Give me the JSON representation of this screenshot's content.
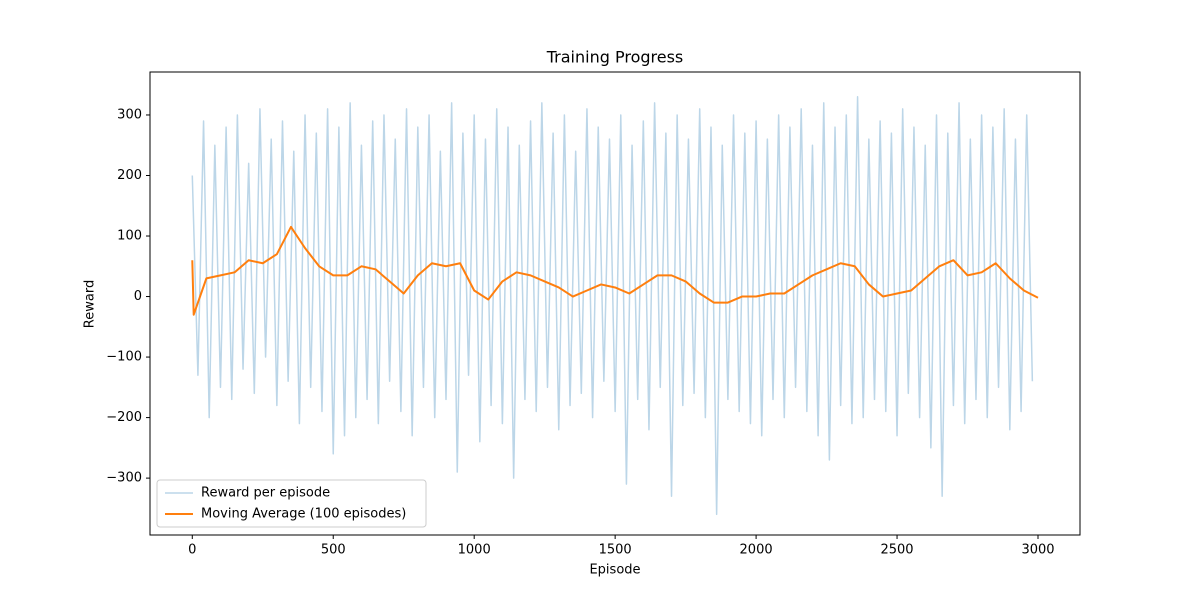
{
  "chart_data": {
    "type": "line",
    "title": "Training Progress",
    "x_label": "Episode",
    "y_label": "Reward",
    "xlim": [
      -150,
      3149
    ],
    "ylim": [
      -394,
      371
    ],
    "xticks": [
      0,
      500,
      1000,
      1500,
      2000,
      2500,
      3000
    ],
    "yticks": [
      {
        "value": -300,
        "label": "−300"
      },
      {
        "value": -200,
        "label": "−200"
      },
      {
        "value": -100,
        "label": "−100"
      },
      0,
      100,
      200,
      300
    ],
    "legend": "lower left",
    "series": [
      {
        "name": "Reward per episode",
        "color": "#bcd6e8",
        "width": 1.5,
        "x": [
          0,
          20,
          40,
          60,
          80,
          100,
          120,
          140,
          160,
          180,
          200,
          220,
          240,
          260,
          280,
          300,
          320,
          340,
          360,
          380,
          400,
          420,
          440,
          460,
          480,
          500,
          520,
          540,
          560,
          580,
          600,
          620,
          640,
          660,
          680,
          700,
          720,
          740,
          760,
          780,
          800,
          820,
          840,
          860,
          880,
          900,
          920,
          940,
          960,
          980,
          1000,
          1020,
          1040,
          1060,
          1080,
          1100,
          1120,
          1140,
          1160,
          1180,
          1200,
          1220,
          1240,
          1260,
          1280,
          1300,
          1320,
          1340,
          1360,
          1380,
          1400,
          1420,
          1440,
          1460,
          1480,
          1500,
          1520,
          1540,
          1560,
          1580,
          1600,
          1620,
          1640,
          1660,
          1680,
          1700,
          1720,
          1740,
          1760,
          1780,
          1800,
          1820,
          1840,
          1860,
          1880,
          1900,
          1920,
          1940,
          1960,
          1980,
          2000,
          2020,
          2040,
          2060,
          2080,
          2100,
          2120,
          2140,
          2160,
          2180,
          2200,
          2220,
          2240,
          2260,
          2280,
          2300,
          2320,
          2340,
          2360,
          2380,
          2400,
          2420,
          2440,
          2460,
          2480,
          2500,
          2520,
          2540,
          2560,
          2580,
          2600,
          2620,
          2640,
          2660,
          2680,
          2700,
          2720,
          2740,
          2760,
          2780,
          2800,
          2820,
          2840,
          2860,
          2880,
          2900,
          2920,
          2940,
          2960,
          2980
        ],
        "values": [
          200,
          -130,
          290,
          -200,
          250,
          -150,
          280,
          -170,
          300,
          -120,
          220,
          -160,
          310,
          -100,
          260,
          -180,
          290,
          -140,
          240,
          -210,
          300,
          -150,
          270,
          -190,
          310,
          -260,
          280,
          -230,
          320,
          -200,
          250,
          -170,
          290,
          -210,
          300,
          -140,
          260,
          -190,
          310,
          -230,
          280,
          -150,
          300,
          -200,
          240,
          -170,
          320,
          -290,
          270,
          -130,
          300,
          -240,
          260,
          -180,
          310,
          -210,
          280,
          -300,
          250,
          -170,
          290,
          -190,
          320,
          -150,
          270,
          -220,
          300,
          -180,
          240,
          -160,
          310,
          -200,
          280,
          -140,
          260,
          -190,
          300,
          -310,
          250,
          -170,
          290,
          -220,
          320,
          -150,
          270,
          -330,
          300,
          -180,
          260,
          -160,
          310,
          -200,
          280,
          -360,
          250,
          -170,
          300,
          -190,
          270,
          -210,
          290,
          -230,
          260,
          -170,
          300,
          -200,
          280,
          -150,
          310,
          -190,
          250,
          -230,
          320,
          -270,
          280,
          -180,
          300,
          -210,
          330,
          -200,
          260,
          -170,
          290,
          -190,
          270,
          -230,
          310,
          -160,
          280,
          -200,
          250,
          -250,
          300,
          -330,
          270,
          -180,
          320,
          -210,
          260,
          -170,
          300,
          -200,
          280,
          -150,
          310,
          -220,
          260,
          -190,
          300,
          -140
        ]
      },
      {
        "name": "Moving Average (100 episodes)",
        "color": "#ff7f0e",
        "width": 2,
        "x": [
          0,
          5,
          50,
          100,
          150,
          200,
          250,
          300,
          350,
          400,
          450,
          500,
          550,
          600,
          650,
          700,
          750,
          800,
          850,
          900,
          950,
          1000,
          1050,
          1100,
          1150,
          1200,
          1250,
          1300,
          1350,
          1400,
          1450,
          1500,
          1550,
          1600,
          1650,
          1700,
          1750,
          1800,
          1850,
          1900,
          1950,
          2000,
          2050,
          2100,
          2150,
          2200,
          2250,
          2300,
          2350,
          2400,
          2450,
          2500,
          2550,
          2600,
          2650,
          2700,
          2750,
          2800,
          2850,
          2900,
          2950,
          3000
        ],
        "values": [
          60,
          -30,
          30,
          35,
          40,
          60,
          55,
          70,
          115,
          80,
          50,
          35,
          35,
          50,
          45,
          25,
          5,
          35,
          55,
          50,
          55,
          10,
          -5,
          25,
          40,
          35,
          25,
          15,
          0,
          10,
          20,
          15,
          5,
          20,
          35,
          35,
          25,
          5,
          -10,
          -10,
          0,
          0,
          5,
          5,
          20,
          35,
          45,
          55,
          50,
          20,
          0,
          5,
          10,
          30,
          50,
          60,
          35,
          40,
          55,
          30,
          10,
          -2
        ]
      }
    ]
  }
}
